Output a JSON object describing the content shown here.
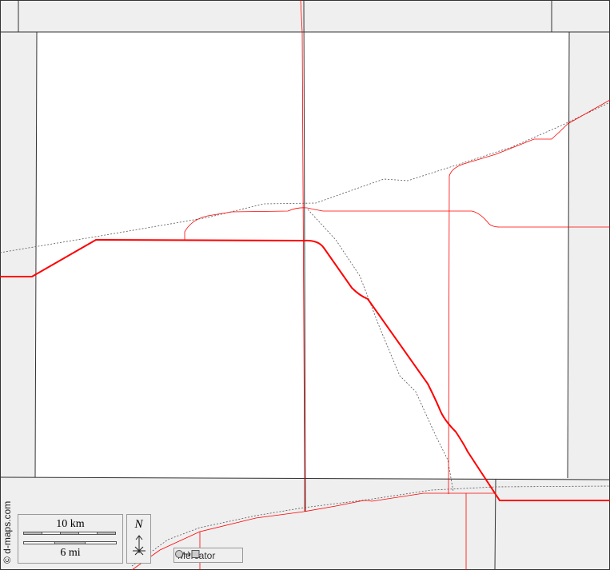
{
  "map": {
    "credit": "© d-maps.com",
    "scale": {
      "km_label": "10 km",
      "mi_label": "6 mi"
    },
    "north_label": "N",
    "projection_label": "Mercator",
    "icons": [
      "north-arrow-icon",
      "projection-circle-to-square-icon"
    ],
    "colors": {
      "outside": "#efefef",
      "county": "#ffffff",
      "border": "#333333",
      "road": "#ff0000",
      "railway": "#555555"
    }
  }
}
